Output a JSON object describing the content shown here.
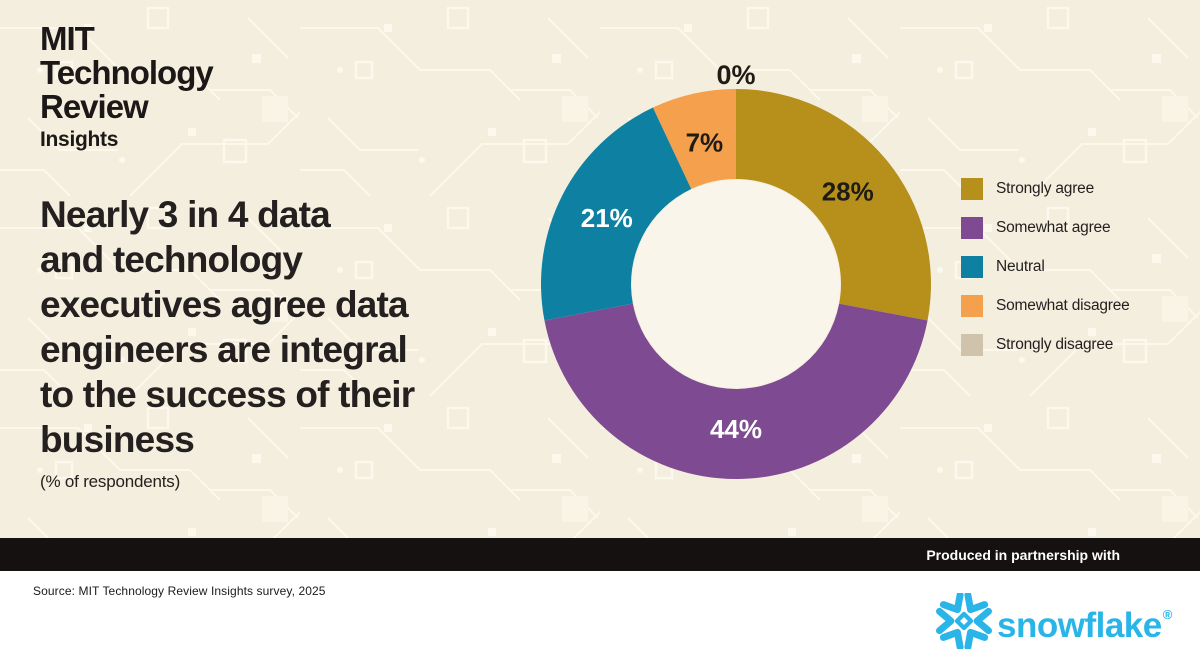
{
  "brand": {
    "line1": "MIT",
    "line2": "Technology",
    "line3": "Review",
    "line4": "Insights"
  },
  "headline": {
    "lines": [
      "Nearly 3 in 4 data",
      "and technology",
      "executives agree data",
      "engineers are integral",
      "to the success of their",
      "business"
    ],
    "subtitle": "(% of respondents)"
  },
  "chart_data": {
    "type": "pie",
    "subtype": "donut",
    "unit": "%",
    "title": "Nearly 3 in 4 data and technology executives agree data engineers are integral to the success of their business (% of respondents)",
    "categories": [
      "Strongly agree",
      "Somewhat agree",
      "Neutral",
      "Somewhat disagree",
      "Strongly disagree"
    ],
    "values": [
      28,
      44,
      21,
      7,
      0
    ],
    "legend_position": "right",
    "start_angle_deg": 0,
    "direction": "clockwise",
    "segments": [
      {
        "label": "Strongly agree",
        "value": 28,
        "color": "#b6901a",
        "label_color": "#1f1b15",
        "label_outside": false
      },
      {
        "label": "Somewhat agree",
        "value": 44,
        "color": "#7e4a92",
        "label_color": "#ffffff",
        "label_outside": false
      },
      {
        "label": "Neutral",
        "value": 21,
        "color": "#0e81a2",
        "label_color": "#ffffff",
        "label_outside": false
      },
      {
        "label": "Somewhat disagree",
        "value": 7,
        "color": "#f4a04c",
        "label_color": "#1f1b15",
        "label_outside": false
      },
      {
        "label": "Strongly disagree",
        "value": 0,
        "color": "#cfc4ab",
        "label_color": "#1f1b15",
        "label_outside": true
      }
    ]
  },
  "footer": {
    "partnership_label": "Produced in partnership with",
    "source": "Source: MIT Technology Review Insights survey, 2025",
    "partner_logo": {
      "icon": "snowflake-icon",
      "wordmark": "snowflake",
      "registered": "®",
      "color": "#29b5e8"
    }
  },
  "colors": {
    "background": "#f4eede",
    "pattern_line": "#fcf8ec",
    "donut_hole": "#faf5ea",
    "bar_black": "#151111",
    "text_dark": "#242020",
    "footer_white": "#ffffff"
  }
}
